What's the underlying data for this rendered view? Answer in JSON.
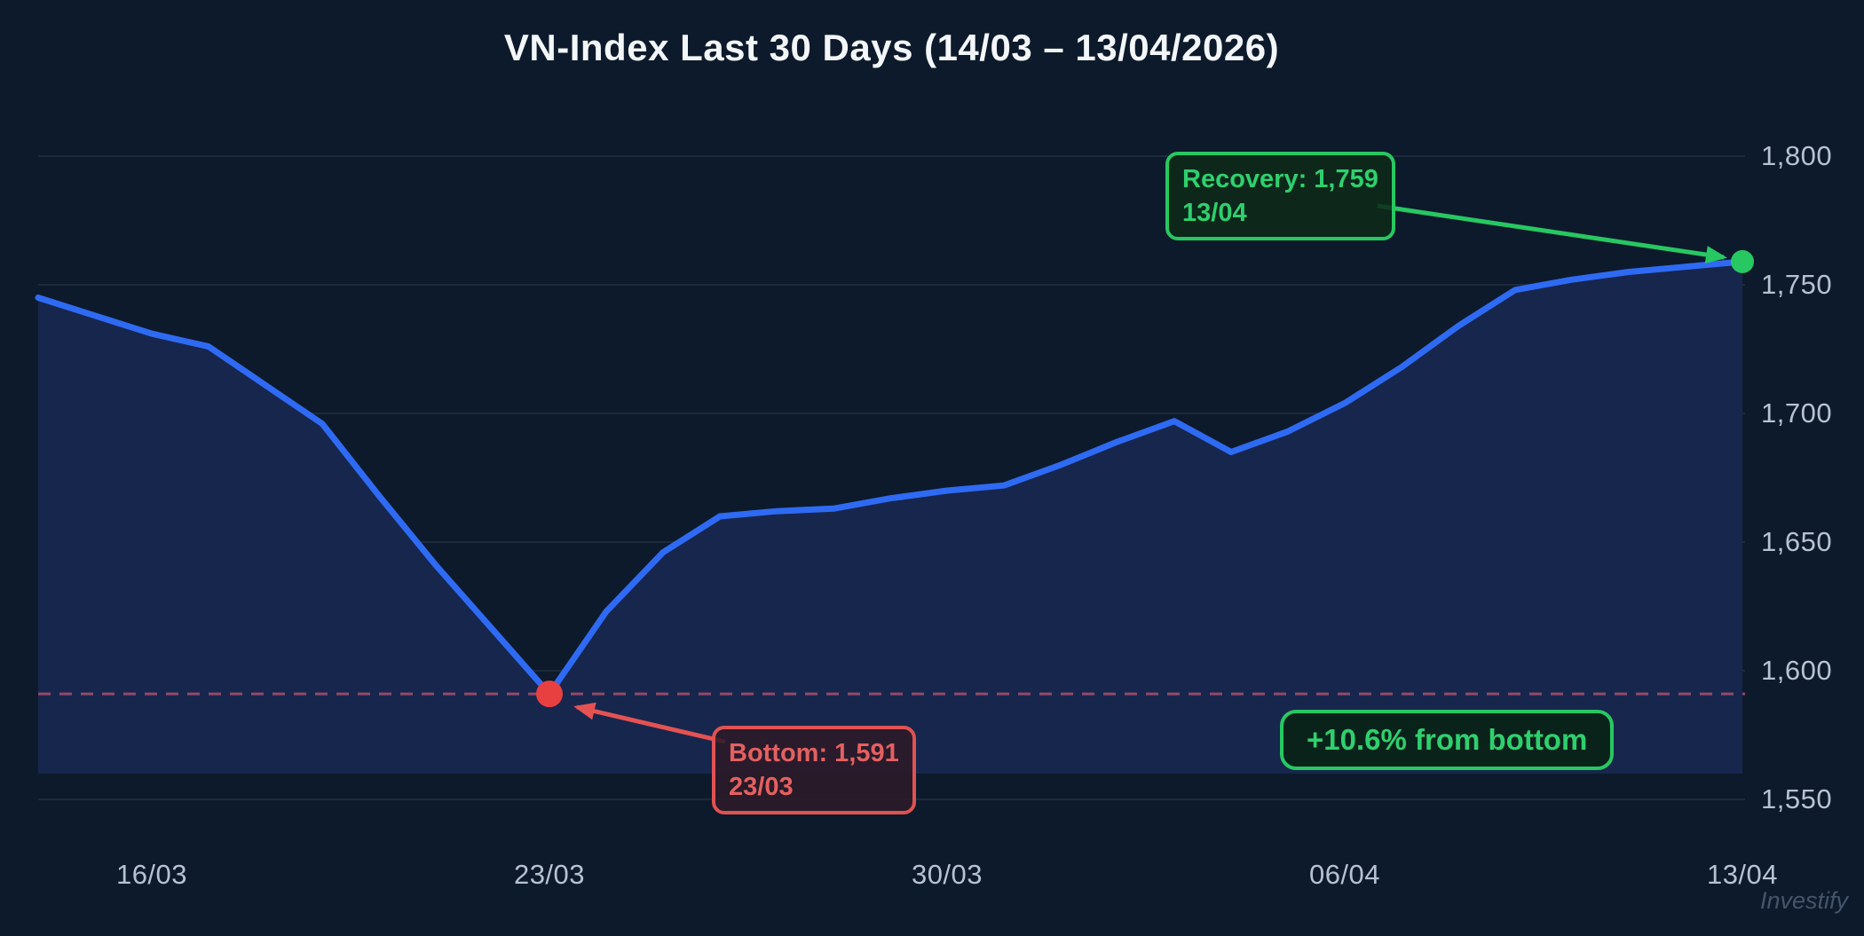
{
  "chart_data": {
    "type": "area",
    "title": "VN-Index Last 30 Days (14/03 – 13/04/2026)",
    "x": [
      "14/03",
      "15/03",
      "16/03",
      "17/03",
      "18/03",
      "19/03",
      "20/03",
      "21/03",
      "22/03",
      "23/03",
      "24/03",
      "25/03",
      "26/03",
      "27/03",
      "28/03",
      "29/03",
      "30/03",
      "31/03",
      "01/04",
      "02/04",
      "03/04",
      "04/04",
      "05/04",
      "06/04",
      "07/04",
      "08/04",
      "09/04",
      "10/04",
      "11/04",
      "12/04",
      "13/04"
    ],
    "series": [
      {
        "name": "VN-Index",
        "values": [
          1745,
          1738,
          1731,
          1726,
          1711,
          1696,
          1668,
          1641,
          1616,
          1591,
          1623,
          1646,
          1660,
          1662,
          1663,
          1667,
          1670,
          1672,
          1680,
          1689,
          1697,
          1685,
          1693,
          1704,
          1718,
          1734,
          1748,
          1752,
          1755,
          1757,
          1759
        ]
      }
    ],
    "xticks": {
      "labels": [
        "16/03",
        "23/03",
        "30/03",
        "06/04",
        "13/04"
      ],
      "indices": [
        2,
        9,
        16,
        23,
        30
      ]
    },
    "ytick_labels": [
      "1,800",
      "1,750",
      "1,700",
      "1,650",
      "1,600",
      "1,550"
    ],
    "ytick_values": [
      1800,
      1750,
      1700,
      1650,
      1600,
      1550
    ],
    "ylim": [
      1560,
      1805
    ],
    "grid": "horizontal",
    "legend": "none",
    "annotations": {
      "bottom": {
        "label": "Bottom: 1,591",
        "date": "23/03",
        "value": 1591,
        "index": 9
      },
      "recovery": {
        "label": "Recovery: 1,759",
        "date": "13/04",
        "value": 1759,
        "index": 30
      },
      "badge": "+10.6% from bottom",
      "support_line_value": 1591
    },
    "colors": {
      "background": "#0d1a2b",
      "line": "#2e6af3",
      "area_fill": "#17264d",
      "grid": "rgba(170,190,215,0.10)",
      "support_dashed": "#c05570",
      "red": "#e45252",
      "red_dot": "#e84040",
      "green": "#27c861",
      "tick_text": "#b7c2d1"
    }
  },
  "watermark": "Investify"
}
